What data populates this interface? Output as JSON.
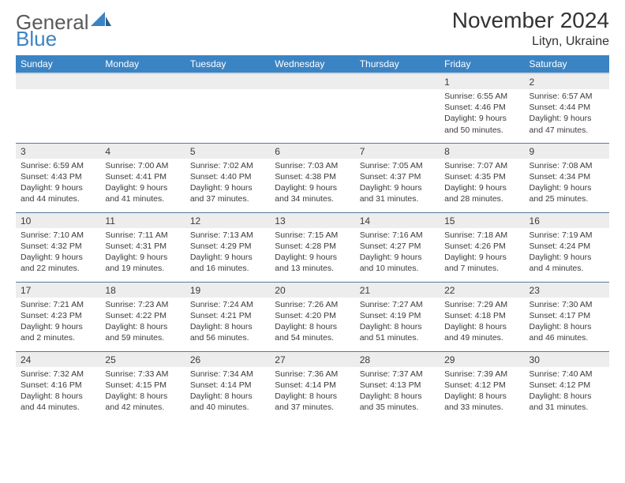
{
  "logo": {
    "text1": "General",
    "text2": "Blue"
  },
  "title": "November 2024",
  "location": "Lityn, Ukraine",
  "colors": {
    "header_bg": "#3b84c4",
    "header_text": "#ffffff",
    "daynum_bg": "#ededed",
    "text": "#3a3a3a",
    "logo_gray": "#5a5a5a",
    "logo_blue": "#3b84c4",
    "divider": "#5a7a9a"
  },
  "day_names": [
    "Sunday",
    "Monday",
    "Tuesday",
    "Wednesday",
    "Thursday",
    "Friday",
    "Saturday"
  ],
  "weeks": [
    [
      {
        "num": "",
        "sunrise": "",
        "sunset": "",
        "daylight": ""
      },
      {
        "num": "",
        "sunrise": "",
        "sunset": "",
        "daylight": ""
      },
      {
        "num": "",
        "sunrise": "",
        "sunset": "",
        "daylight": ""
      },
      {
        "num": "",
        "sunrise": "",
        "sunset": "",
        "daylight": ""
      },
      {
        "num": "",
        "sunrise": "",
        "sunset": "",
        "daylight": ""
      },
      {
        "num": "1",
        "sunrise": "Sunrise: 6:55 AM",
        "sunset": "Sunset: 4:46 PM",
        "daylight": "Daylight: 9 hours and 50 minutes."
      },
      {
        "num": "2",
        "sunrise": "Sunrise: 6:57 AM",
        "sunset": "Sunset: 4:44 PM",
        "daylight": "Daylight: 9 hours and 47 minutes."
      }
    ],
    [
      {
        "num": "3",
        "sunrise": "Sunrise: 6:59 AM",
        "sunset": "Sunset: 4:43 PM",
        "daylight": "Daylight: 9 hours and 44 minutes."
      },
      {
        "num": "4",
        "sunrise": "Sunrise: 7:00 AM",
        "sunset": "Sunset: 4:41 PM",
        "daylight": "Daylight: 9 hours and 41 minutes."
      },
      {
        "num": "5",
        "sunrise": "Sunrise: 7:02 AM",
        "sunset": "Sunset: 4:40 PM",
        "daylight": "Daylight: 9 hours and 37 minutes."
      },
      {
        "num": "6",
        "sunrise": "Sunrise: 7:03 AM",
        "sunset": "Sunset: 4:38 PM",
        "daylight": "Daylight: 9 hours and 34 minutes."
      },
      {
        "num": "7",
        "sunrise": "Sunrise: 7:05 AM",
        "sunset": "Sunset: 4:37 PM",
        "daylight": "Daylight: 9 hours and 31 minutes."
      },
      {
        "num": "8",
        "sunrise": "Sunrise: 7:07 AM",
        "sunset": "Sunset: 4:35 PM",
        "daylight": "Daylight: 9 hours and 28 minutes."
      },
      {
        "num": "9",
        "sunrise": "Sunrise: 7:08 AM",
        "sunset": "Sunset: 4:34 PM",
        "daylight": "Daylight: 9 hours and 25 minutes."
      }
    ],
    [
      {
        "num": "10",
        "sunrise": "Sunrise: 7:10 AM",
        "sunset": "Sunset: 4:32 PM",
        "daylight": "Daylight: 9 hours and 22 minutes."
      },
      {
        "num": "11",
        "sunrise": "Sunrise: 7:11 AM",
        "sunset": "Sunset: 4:31 PM",
        "daylight": "Daylight: 9 hours and 19 minutes."
      },
      {
        "num": "12",
        "sunrise": "Sunrise: 7:13 AM",
        "sunset": "Sunset: 4:29 PM",
        "daylight": "Daylight: 9 hours and 16 minutes."
      },
      {
        "num": "13",
        "sunrise": "Sunrise: 7:15 AM",
        "sunset": "Sunset: 4:28 PM",
        "daylight": "Daylight: 9 hours and 13 minutes."
      },
      {
        "num": "14",
        "sunrise": "Sunrise: 7:16 AM",
        "sunset": "Sunset: 4:27 PM",
        "daylight": "Daylight: 9 hours and 10 minutes."
      },
      {
        "num": "15",
        "sunrise": "Sunrise: 7:18 AM",
        "sunset": "Sunset: 4:26 PM",
        "daylight": "Daylight: 9 hours and 7 minutes."
      },
      {
        "num": "16",
        "sunrise": "Sunrise: 7:19 AM",
        "sunset": "Sunset: 4:24 PM",
        "daylight": "Daylight: 9 hours and 4 minutes."
      }
    ],
    [
      {
        "num": "17",
        "sunrise": "Sunrise: 7:21 AM",
        "sunset": "Sunset: 4:23 PM",
        "daylight": "Daylight: 9 hours and 2 minutes."
      },
      {
        "num": "18",
        "sunrise": "Sunrise: 7:23 AM",
        "sunset": "Sunset: 4:22 PM",
        "daylight": "Daylight: 8 hours and 59 minutes."
      },
      {
        "num": "19",
        "sunrise": "Sunrise: 7:24 AM",
        "sunset": "Sunset: 4:21 PM",
        "daylight": "Daylight: 8 hours and 56 minutes."
      },
      {
        "num": "20",
        "sunrise": "Sunrise: 7:26 AM",
        "sunset": "Sunset: 4:20 PM",
        "daylight": "Daylight: 8 hours and 54 minutes."
      },
      {
        "num": "21",
        "sunrise": "Sunrise: 7:27 AM",
        "sunset": "Sunset: 4:19 PM",
        "daylight": "Daylight: 8 hours and 51 minutes."
      },
      {
        "num": "22",
        "sunrise": "Sunrise: 7:29 AM",
        "sunset": "Sunset: 4:18 PM",
        "daylight": "Daylight: 8 hours and 49 minutes."
      },
      {
        "num": "23",
        "sunrise": "Sunrise: 7:30 AM",
        "sunset": "Sunset: 4:17 PM",
        "daylight": "Daylight: 8 hours and 46 minutes."
      }
    ],
    [
      {
        "num": "24",
        "sunrise": "Sunrise: 7:32 AM",
        "sunset": "Sunset: 4:16 PM",
        "daylight": "Daylight: 8 hours and 44 minutes."
      },
      {
        "num": "25",
        "sunrise": "Sunrise: 7:33 AM",
        "sunset": "Sunset: 4:15 PM",
        "daylight": "Daylight: 8 hours and 42 minutes."
      },
      {
        "num": "26",
        "sunrise": "Sunrise: 7:34 AM",
        "sunset": "Sunset: 4:14 PM",
        "daylight": "Daylight: 8 hours and 40 minutes."
      },
      {
        "num": "27",
        "sunrise": "Sunrise: 7:36 AM",
        "sunset": "Sunset: 4:14 PM",
        "daylight": "Daylight: 8 hours and 37 minutes."
      },
      {
        "num": "28",
        "sunrise": "Sunrise: 7:37 AM",
        "sunset": "Sunset: 4:13 PM",
        "daylight": "Daylight: 8 hours and 35 minutes."
      },
      {
        "num": "29",
        "sunrise": "Sunrise: 7:39 AM",
        "sunset": "Sunset: 4:12 PM",
        "daylight": "Daylight: 8 hours and 33 minutes."
      },
      {
        "num": "30",
        "sunrise": "Sunrise: 7:40 AM",
        "sunset": "Sunset: 4:12 PM",
        "daylight": "Daylight: 8 hours and 31 minutes."
      }
    ]
  ]
}
